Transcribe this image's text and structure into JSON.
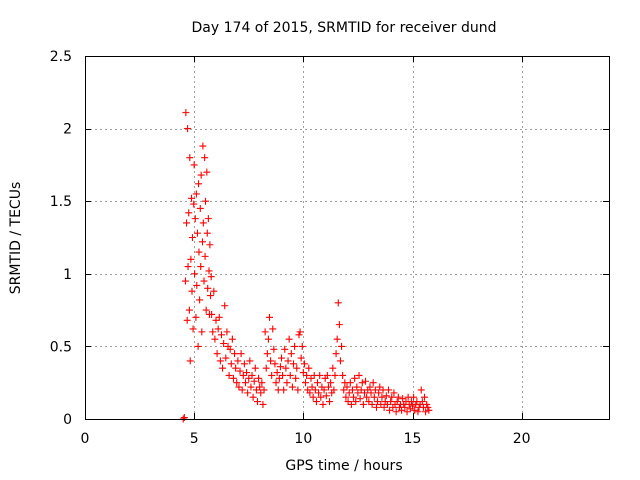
{
  "chart_data": {
    "type": "scatter",
    "title": "Day 174 of 2015, SRMTID for receiver dund",
    "xlabel": "GPS time / hours",
    "ylabel": "SRMTID / TECUs",
    "xlim": [
      0,
      24
    ],
    "ylim": [
      0,
      2.5
    ],
    "xticks": [
      0,
      5,
      10,
      15,
      20
    ],
    "xtick_labels": [
      "0",
      "5",
      "10",
      "15",
      "20"
    ],
    "yticks": [
      0,
      0.5,
      1,
      1.5,
      2,
      2.5
    ],
    "ytick_labels": [
      "0",
      "0.5",
      "1",
      "1.5",
      "2",
      "2.5"
    ],
    "grid": true,
    "marker": "plus",
    "series": [
      {
        "name": "SRMTID",
        "color": "#ff0000",
        "x": [
          4.5,
          4.55,
          4.6,
          4.62,
          4.65,
          4.68,
          4.7,
          4.72,
          4.75,
          4.78,
          4.8,
          4.82,
          4.85,
          4.88,
          4.9,
          4.92,
          4.95,
          4.98,
          5.0,
          5.02,
          5.05,
          5.08,
          5.1,
          5.12,
          5.15,
          5.18,
          5.2,
          5.22,
          5.25,
          5.28,
          5.3,
          5.32,
          5.35,
          5.38,
          5.4,
          5.42,
          5.45,
          5.48,
          5.5,
          5.52,
          5.55,
          5.58,
          5.6,
          5.62,
          5.65,
          5.68,
          5.7,
          5.72,
          5.75,
          5.78,
          5.8,
          5.85,
          5.9,
          5.95,
          6.0,
          6.05,
          6.1,
          6.15,
          6.2,
          6.25,
          6.3,
          6.35,
          6.4,
          6.45,
          6.5,
          6.55,
          6.6,
          6.65,
          6.7,
          6.75,
          6.8,
          6.85,
          6.9,
          6.95,
          7.0,
          7.05,
          7.1,
          7.15,
          7.2,
          7.25,
          7.3,
          7.35,
          7.4,
          7.45,
          7.5,
          7.55,
          7.6,
          7.65,
          7.7,
          7.75,
          7.8,
          7.85,
          7.9,
          7.95,
          8.0,
          8.05,
          8.1,
          8.15,
          8.2,
          8.25,
          8.3,
          8.35,
          8.4,
          8.45,
          8.5,
          8.55,
          8.6,
          8.65,
          8.7,
          8.75,
          8.8,
          8.85,
          8.9,
          8.95,
          9.0,
          9.05,
          9.1,
          9.15,
          9.2,
          9.25,
          9.3,
          9.35,
          9.4,
          9.45,
          9.5,
          9.55,
          9.6,
          9.65,
          9.7,
          9.75,
          9.8,
          9.85,
          9.9,
          9.95,
          10.0,
          10.05,
          10.1,
          10.15,
          10.2,
          10.25,
          10.3,
          10.35,
          10.4,
          10.45,
          10.5,
          10.55,
          10.6,
          10.65,
          10.7,
          10.75,
          10.8,
          10.85,
          10.9,
          10.95,
          11.0,
          11.05,
          11.1,
          11.15,
          11.2,
          11.25,
          11.3,
          11.35,
          11.4,
          11.45,
          11.5,
          11.55,
          11.6,
          11.65,
          11.7,
          11.75,
          11.8,
          11.85,
          11.9,
          11.95,
          12.0,
          12.05,
          12.1,
          12.15,
          12.2,
          12.25,
          12.3,
          12.35,
          12.4,
          12.45,
          12.5,
          12.55,
          12.6,
          12.65,
          12.7,
          12.75,
          12.8,
          12.85,
          12.9,
          12.95,
          13.0,
          13.05,
          13.1,
          13.15,
          13.2,
          13.25,
          13.3,
          13.35,
          13.4,
          13.45,
          13.5,
          13.55,
          13.6,
          13.65,
          13.7,
          13.75,
          13.8,
          13.85,
          13.9,
          13.95,
          14.0,
          14.05,
          14.1,
          14.15,
          14.2,
          14.25,
          14.3,
          14.35,
          14.4,
          14.45,
          14.5,
          14.55,
          14.6,
          14.65,
          14.7,
          14.75,
          14.8,
          14.85,
          14.9,
          14.95,
          15.0,
          15.05,
          15.1,
          15.15,
          15.2,
          15.25,
          15.3,
          15.35,
          15.4,
          15.45,
          15.5,
          15.55,
          15.6,
          15.65,
          15.7,
          15.75
        ],
        "y": [
          0.0,
          0.01,
          0.95,
          2.11,
          1.35,
          0.68,
          2.0,
          1.05,
          1.42,
          0.75,
          1.8,
          0.4,
          1.1,
          1.52,
          0.88,
          1.25,
          0.62,
          1.48,
          1.75,
          1.0,
          1.38,
          0.7,
          1.55,
          0.92,
          1.28,
          0.5,
          1.62,
          1.15,
          0.82,
          1.45,
          1.05,
          1.68,
          0.6,
          1.22,
          1.88,
          1.35,
          0.95,
          1.8,
          1.12,
          1.5,
          0.75,
          1.7,
          1.28,
          0.9,
          1.38,
          1.02,
          0.72,
          1.2,
          0.85,
          0.98,
          0.72,
          0.6,
          0.88,
          0.55,
          0.68,
          0.45,
          0.62,
          0.7,
          0.4,
          0.58,
          0.35,
          0.52,
          0.78,
          0.42,
          0.6,
          0.5,
          0.3,
          0.48,
          0.38,
          0.55,
          0.28,
          0.45,
          0.35,
          0.25,
          0.4,
          0.22,
          0.33,
          0.45,
          0.2,
          0.3,
          0.38,
          0.25,
          0.32,
          0.18,
          0.28,
          0.4,
          0.22,
          0.3,
          0.15,
          0.26,
          0.35,
          0.2,
          0.12,
          0.28,
          0.22,
          0.18,
          0.25,
          0.1,
          0.2,
          0.6,
          0.35,
          0.45,
          0.55,
          0.7,
          0.4,
          0.3,
          0.62,
          0.48,
          0.38,
          0.25,
          0.32,
          0.2,
          0.28,
          0.36,
          0.42,
          0.3,
          0.2,
          0.48,
          0.35,
          0.25,
          0.4,
          0.55,
          0.3,
          0.45,
          0.22,
          0.38,
          0.5,
          0.28,
          0.35,
          0.2,
          0.58,
          0.6,
          0.42,
          0.5,
          0.32,
          0.38,
          0.25,
          0.3,
          0.2,
          0.35,
          0.18,
          0.28,
          0.22,
          0.15,
          0.3,
          0.2,
          0.12,
          0.25,
          0.18,
          0.3,
          0.15,
          0.22,
          0.1,
          0.2,
          0.28,
          0.16,
          0.3,
          0.22,
          0.12,
          0.25,
          0.18,
          0.35,
          0.2,
          0.3,
          0.45,
          0.55,
          0.8,
          0.65,
          0.4,
          0.5,
          0.3,
          0.2,
          0.25,
          0.15,
          0.22,
          0.12,
          0.18,
          0.25,
          0.1,
          0.2,
          0.15,
          0.28,
          0.12,
          0.22,
          0.18,
          0.3,
          0.14,
          0.2,
          0.25,
          0.1,
          0.18,
          0.26,
          0.15,
          0.2,
          0.12,
          0.22,
          0.18,
          0.1,
          0.25,
          0.15,
          0.2,
          0.08,
          0.12,
          0.18,
          0.22,
          0.1,
          0.15,
          0.2,
          0.08,
          0.12,
          0.16,
          0.1,
          0.2,
          0.06,
          0.12,
          0.15,
          0.08,
          0.18,
          0.1,
          0.05,
          0.12,
          0.15,
          0.08,
          0.1,
          0.06,
          0.14,
          0.1,
          0.08,
          0.12,
          0.05,
          0.15,
          0.1,
          0.07,
          0.12,
          0.09,
          0.15,
          0.06,
          0.1,
          0.12,
          0.05,
          0.08,
          0.1,
          0.2,
          0.12,
          0.08,
          0.15,
          0.05,
          0.1,
          0.08,
          0.06
        ]
      }
    ]
  }
}
